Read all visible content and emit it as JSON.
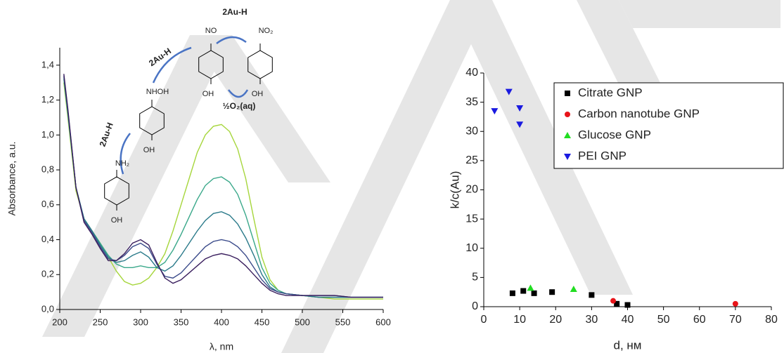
{
  "chart_data": [
    {
      "type": "line",
      "x_label": "λ, nm",
      "y_label": "Absorbance, a.u.",
      "x": [
        205,
        210,
        220,
        230,
        240,
        250,
        260,
        270,
        280,
        290,
        300,
        310,
        320,
        330,
        340,
        350,
        360,
        370,
        380,
        390,
        400,
        410,
        420,
        430,
        440,
        450,
        460,
        470,
        480,
        500,
        520,
        540,
        560,
        580,
        600
      ],
      "series": [
        {
          "color": "#a6d63c",
          "values": [
            1.3,
            1.1,
            0.68,
            0.52,
            0.45,
            0.38,
            0.3,
            0.22,
            0.16,
            0.14,
            0.15,
            0.18,
            0.24,
            0.32,
            0.45,
            0.6,
            0.75,
            0.9,
            1.0,
            1.05,
            1.06,
            1.02,
            0.92,
            0.75,
            0.52,
            0.3,
            0.17,
            0.11,
            0.09,
            0.08,
            0.07,
            0.06,
            0.06,
            0.06,
            0.06
          ]
        },
        {
          "color": "#3aa88a",
          "values": [
            1.32,
            1.12,
            0.7,
            0.52,
            0.45,
            0.38,
            0.31,
            0.26,
            0.24,
            0.24,
            0.25,
            0.24,
            0.24,
            0.27,
            0.34,
            0.43,
            0.53,
            0.63,
            0.71,
            0.75,
            0.76,
            0.73,
            0.66,
            0.54,
            0.39,
            0.24,
            0.15,
            0.11,
            0.09,
            0.08,
            0.07,
            0.07,
            0.07,
            0.07,
            0.07
          ]
        },
        {
          "color": "#2a7a8a",
          "values": [
            1.33,
            1.13,
            0.7,
            0.52,
            0.45,
            0.37,
            0.3,
            0.27,
            0.28,
            0.31,
            0.33,
            0.3,
            0.24,
            0.22,
            0.25,
            0.31,
            0.38,
            0.45,
            0.51,
            0.55,
            0.56,
            0.54,
            0.49,
            0.41,
            0.31,
            0.2,
            0.13,
            0.1,
            0.09,
            0.08,
            0.07,
            0.07,
            0.07,
            0.07,
            0.07
          ]
        },
        {
          "color": "#3a4a8a",
          "values": [
            1.34,
            1.14,
            0.7,
            0.51,
            0.44,
            0.36,
            0.29,
            0.28,
            0.31,
            0.36,
            0.38,
            0.35,
            0.26,
            0.19,
            0.18,
            0.21,
            0.26,
            0.31,
            0.36,
            0.39,
            0.4,
            0.39,
            0.36,
            0.31,
            0.24,
            0.17,
            0.12,
            0.1,
            0.09,
            0.08,
            0.08,
            0.08,
            0.07,
            0.07,
            0.07
          ]
        },
        {
          "color": "#3a1f5e",
          "values": [
            1.35,
            1.15,
            0.7,
            0.5,
            0.43,
            0.35,
            0.28,
            0.28,
            0.32,
            0.38,
            0.4,
            0.37,
            0.27,
            0.18,
            0.15,
            0.17,
            0.21,
            0.25,
            0.29,
            0.31,
            0.32,
            0.31,
            0.29,
            0.25,
            0.2,
            0.15,
            0.11,
            0.09,
            0.08,
            0.08,
            0.08,
            0.08,
            0.07,
            0.07,
            0.07
          ]
        }
      ],
      "xlim": [
        200,
        600
      ],
      "xticks": [
        200,
        250,
        300,
        350,
        400,
        450,
        500,
        550,
        600
      ],
      "ylim": [
        0,
        1.5
      ],
      "yticks": [
        {
          "value": 0,
          "label": "0,0"
        },
        {
          "value": 0.2,
          "label": "0,2"
        },
        {
          "value": 0.4,
          "label": "0,4"
        },
        {
          "value": 0.6,
          "label": "0,6"
        },
        {
          "value": 0.8,
          "label": "0,8"
        },
        {
          "value": 1.0,
          "label": "1,0"
        },
        {
          "value": 1.2,
          "label": "1,2"
        },
        {
          "value": 1.4,
          "label": "1,4"
        }
      ]
    },
    {
      "type": "scatter",
      "x_label": "d, нм",
      "y_label": "k/c(Au)",
      "legend": "upper right",
      "series": [
        {
          "name": "Citrate GNP",
          "color": "#000000",
          "marker": "square",
          "x": [
            8,
            11,
            14,
            19,
            30,
            37,
            40
          ],
          "values": [
            2.3,
            2.7,
            2.3,
            2.5,
            2.0,
            0.5,
            0.3
          ]
        },
        {
          "name": "Carbon nanotube GNP",
          "color": "#e8141a",
          "marker": "circle",
          "x": [
            36,
            70
          ],
          "values": [
            1.0,
            0.5
          ]
        },
        {
          "name": "Glucose GNP",
          "color": "#22dd22",
          "marker": "triangle-up",
          "x": [
            13,
            25
          ],
          "values": [
            3.2,
            3.0
          ]
        },
        {
          "name": "PEI GNP",
          "color": "#1a1ae0",
          "marker": "triangle-down",
          "x": [
            3,
            7,
            10,
            10
          ],
          "values": [
            33.5,
            36.8,
            34.0,
            31.2
          ]
        }
      ],
      "xlim": [
        0,
        80
      ],
      "xticks": [
        0,
        10,
        20,
        30,
        40,
        50,
        60,
        70,
        80
      ],
      "ylim": [
        0,
        40
      ],
      "yticks": [
        0,
        5,
        10,
        15,
        20,
        25,
        30,
        35,
        40
      ]
    }
  ],
  "scheme": {
    "labels": [
      "2Au-H",
      "NO",
      "NO₂",
      "OH",
      "OH",
      "½O₂(aq)",
      "2Au-H",
      "NHOH",
      "OH",
      "2Au-H",
      "NH₂",
      "OH"
    ]
  }
}
